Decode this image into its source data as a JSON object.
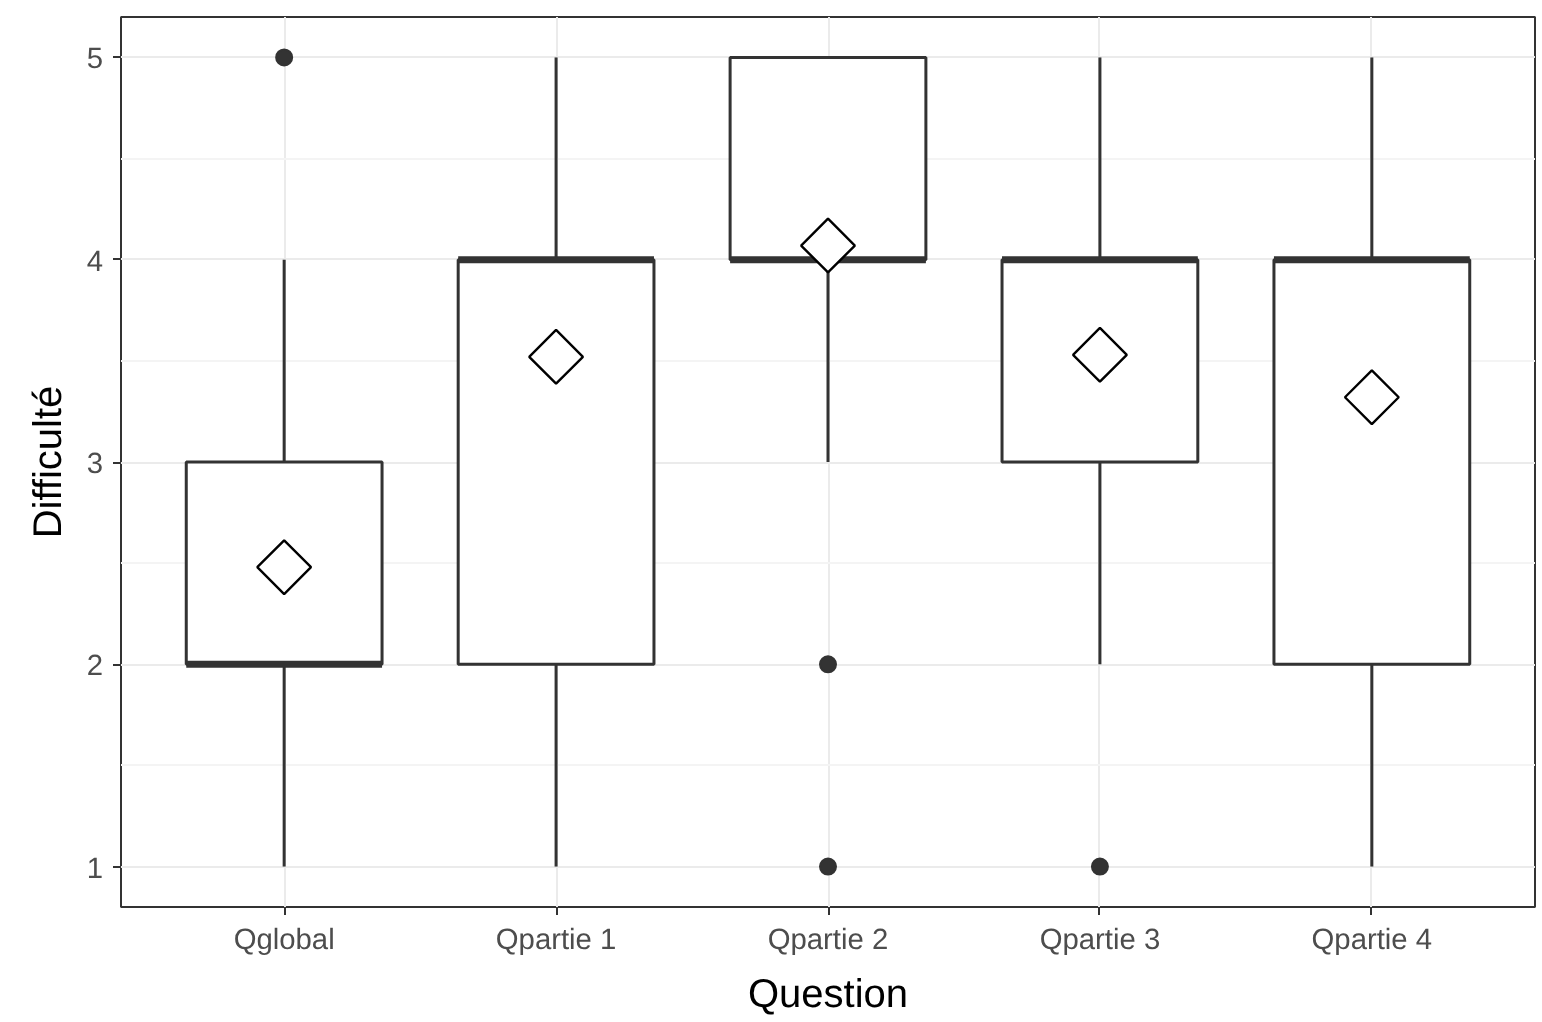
{
  "chart_data": {
    "type": "box",
    "xlabel": "Question",
    "ylabel": "Difficulté",
    "categories": [
      "Qglobal",
      "Qpartie 1",
      "Qpartie 2",
      "Qpartie 3",
      "Qpartie 4"
    ],
    "boxes": [
      {
        "low": 1,
        "q1": 2,
        "median": 2,
        "q3": 3,
        "high": 4,
        "mean": 2.48,
        "outliers": [
          5
        ]
      },
      {
        "low": 1,
        "q1": 2,
        "median": 4,
        "q3": 4,
        "high": 5,
        "mean": 3.52
      },
      {
        "low": 3,
        "q1": 4,
        "median": 4,
        "q3": 5,
        "high": 5,
        "mean": 4.07,
        "outliers": [
          2,
          1
        ]
      },
      {
        "low": 2,
        "q1": 3,
        "median": 4,
        "q3": 4,
        "high": 5,
        "mean": 3.53,
        "outliers": [
          1
        ]
      },
      {
        "low": 1,
        "q1": 2,
        "median": 4,
        "q3": 4,
        "high": 5,
        "mean": 3.32
      }
    ],
    "color": "#333333",
    "ylim": [
      0.8,
      5.2
    ],
    "yticks": [
      1,
      2,
      3,
      4,
      5
    ],
    "grid": true
  }
}
